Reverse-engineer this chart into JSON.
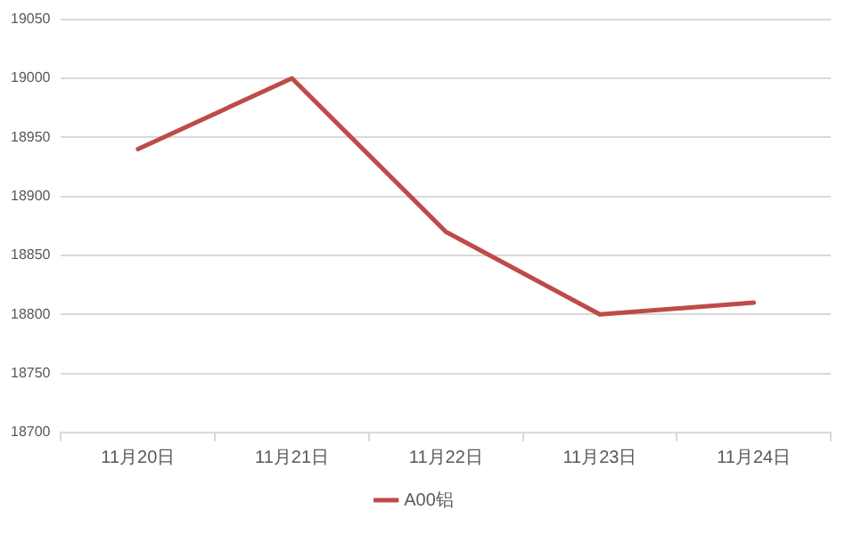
{
  "chart_data": {
    "type": "line",
    "categories": [
      "11月20日",
      "11月21日",
      "11月22日",
      "11月23日",
      "11月24日"
    ],
    "series": [
      {
        "name": "A00铝",
        "color": "#be4b48",
        "values": [
          18940,
          19000,
          18870,
          18800,
          18810
        ]
      }
    ],
    "ylim": [
      18700,
      19050
    ],
    "yticks": [
      18700,
      18750,
      18800,
      18850,
      18900,
      18950,
      19000,
      19050
    ],
    "grid": "y",
    "legend": "bottom",
    "marker": "none",
    "line_style": "solid"
  }
}
